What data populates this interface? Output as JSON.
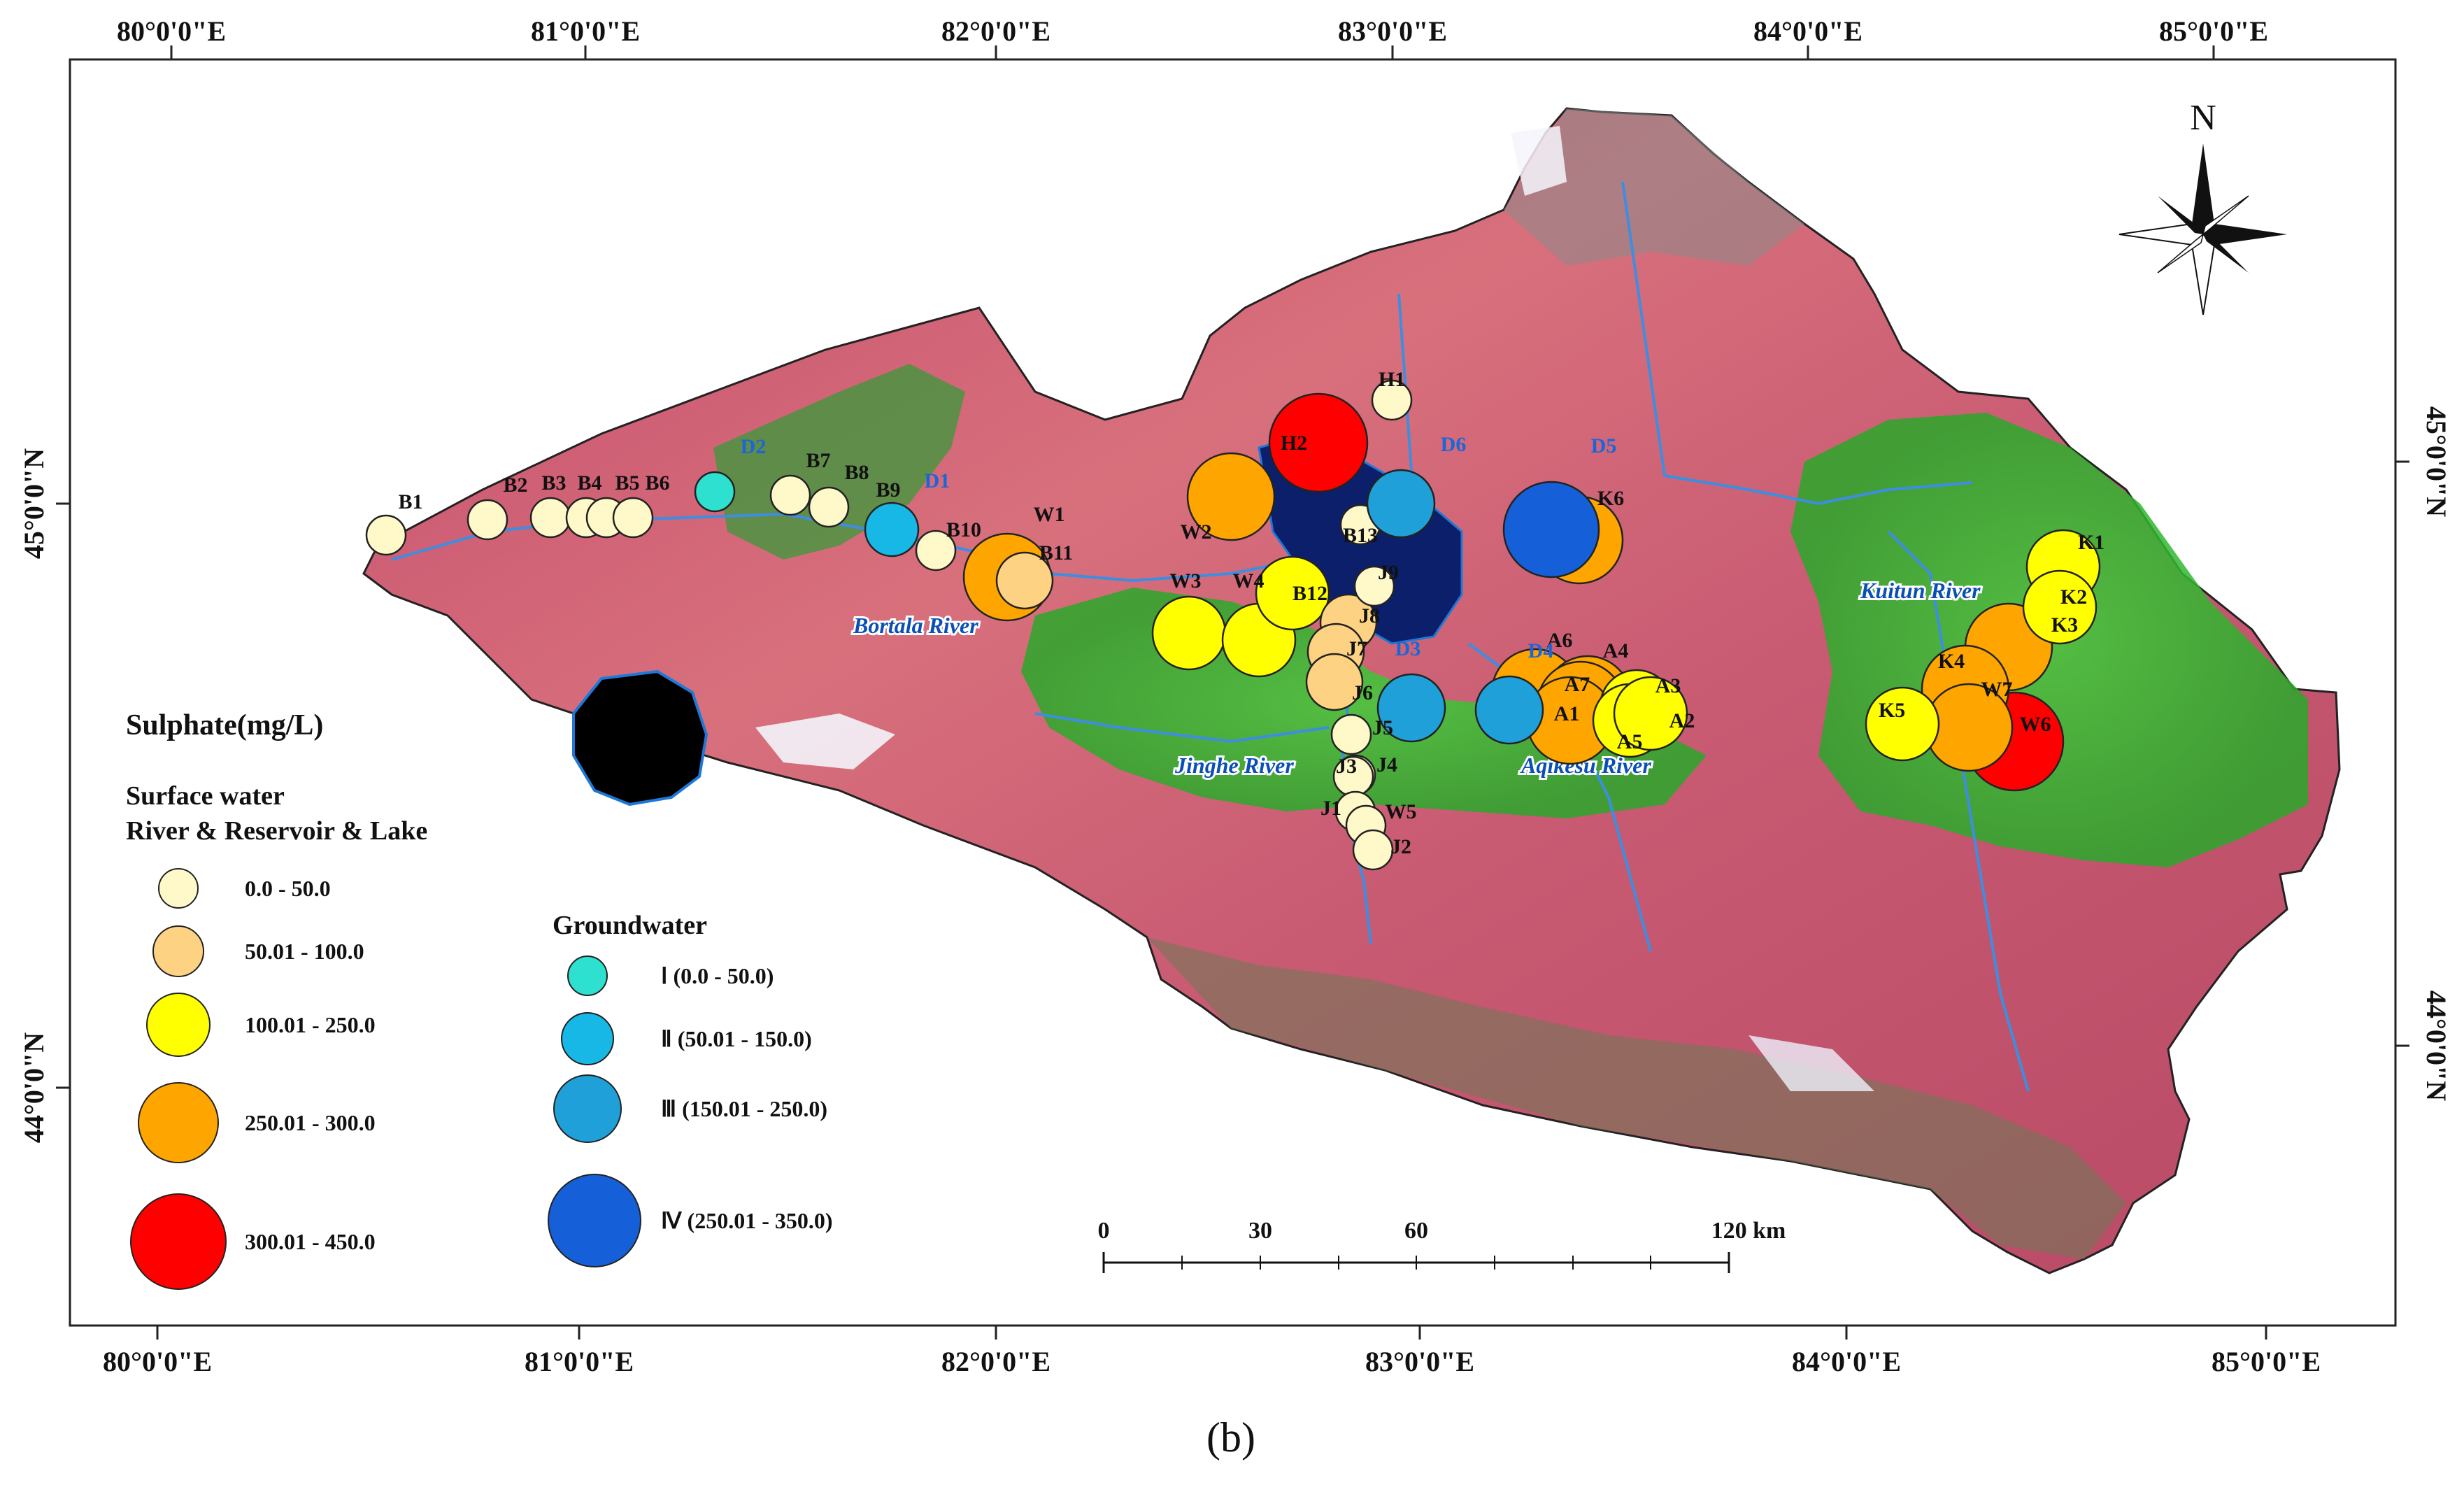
{
  "axes": {
    "top_lon": [
      "80°0'0\"E",
      "81°0'0\"E",
      "82°0'0\"E",
      "83°0'0\"E",
      "84°0'0\"E",
      "85°0'0\"E"
    ],
    "bottom_lon": [
      "80°0'0\"E",
      "81°0'0\"E",
      "82°0'0\"E",
      "83°0'0\"E",
      "84°0'0\"E",
      "85°0'0\"E"
    ],
    "left_lat": [
      "45°0'0\"N",
      "44°0'0\"N"
    ],
    "right_lat": [
      "45°0'0\"N",
      "44°0'0\"N"
    ]
  },
  "north_label": "N",
  "legend": {
    "title": "Sulphate(mg/L)",
    "surface_title_1": "Surface water",
    "surface_title_2": "River & Reservoir & Lake",
    "surface_classes": [
      {
        "label": "0.0 - 50.0",
        "color": "#fff8c8"
      },
      {
        "label": "50.01 - 100.0",
        "color": "#fdd283"
      },
      {
        "label": "100.01 - 250.0",
        "color": "#ffff00"
      },
      {
        "label": "250.01 - 300.0",
        "color": "#ffa500"
      },
      {
        "label": "300.01 - 450.0",
        "color": "#ff0000"
      }
    ],
    "groundwater_title": "Groundwater",
    "groundwater_classes": [
      {
        "label": "Ⅰ (0.0 - 50.0)",
        "color": "#2ee0d0"
      },
      {
        "label": "Ⅱ (50.01 - 150.0)",
        "color": "#17b7e6"
      },
      {
        "label": "Ⅲ (150.01 - 250.0)",
        "color": "#1fa0d8"
      },
      {
        "label": "Ⅳ (250.01 - 350.0)",
        "color": "#1560d8"
      }
    ]
  },
  "scale_bar": {
    "ticks": [
      "0",
      "30",
      "60",
      "120 km"
    ]
  },
  "rivers": [
    "Bortala River",
    "Jinghe River",
    "Aqikesu River",
    "Kuitun River"
  ],
  "surface_sites": [
    {
      "id": "B1",
      "cls": 1
    },
    {
      "id": "B2",
      "cls": 1
    },
    {
      "id": "B3",
      "cls": 1
    },
    {
      "id": "B4",
      "cls": 1
    },
    {
      "id": "B5",
      "cls": 1
    },
    {
      "id": "B6",
      "cls": 1
    },
    {
      "id": "B7",
      "cls": 1
    },
    {
      "id": "B8",
      "cls": 1
    },
    {
      "id": "B9",
      "cls": 1
    },
    {
      "id": "B10",
      "cls": 1
    },
    {
      "id": "B11",
      "cls": 2
    },
    {
      "id": "W1",
      "cls": 4
    },
    {
      "id": "W2",
      "cls": 4
    },
    {
      "id": "W3",
      "cls": 3
    },
    {
      "id": "W4",
      "cls": 3
    },
    {
      "id": "B12",
      "cls": 3
    },
    {
      "id": "H1",
      "cls": 1
    },
    {
      "id": "H2",
      "cls": 5
    },
    {
      "id": "B13",
      "cls": 1
    },
    {
      "id": "J9",
      "cls": 1
    },
    {
      "id": "J8",
      "cls": 2
    },
    {
      "id": "J7",
      "cls": 2
    },
    {
      "id": "J6",
      "cls": 2
    },
    {
      "id": "J5",
      "cls": 1
    },
    {
      "id": "J4",
      "cls": 1
    },
    {
      "id": "J3",
      "cls": 1
    },
    {
      "id": "J1",
      "cls": 1
    },
    {
      "id": "W5",
      "cls": 1
    },
    {
      "id": "J2",
      "cls": 1
    },
    {
      "id": "K6",
      "cls": 4
    },
    {
      "id": "A6",
      "cls": 4
    },
    {
      "id": "A4",
      "cls": 4
    },
    {
      "id": "A7",
      "cls": 4
    },
    {
      "id": "A3",
      "cls": 3
    },
    {
      "id": "A1",
      "cls": 4
    },
    {
      "id": "A5",
      "cls": 3
    },
    {
      "id": "A2",
      "cls": 3
    },
    {
      "id": "K1",
      "cls": 3
    },
    {
      "id": "K2",
      "cls": 3
    },
    {
      "id": "K3",
      "cls": 4
    },
    {
      "id": "K4",
      "cls": 4
    },
    {
      "id": "W7",
      "cls": 4
    },
    {
      "id": "K5",
      "cls": 3
    },
    {
      "id": "W6",
      "cls": 5
    }
  ],
  "groundwater_sites": [
    {
      "id": "D2",
      "cls": 1
    },
    {
      "id": "D1",
      "cls": 2
    },
    {
      "id": "D6",
      "cls": 3
    },
    {
      "id": "D5",
      "cls": 4
    },
    {
      "id": "D3",
      "cls": 3
    },
    {
      "id": "D4",
      "cls": 3
    }
  ],
  "caption": "(b)"
}
